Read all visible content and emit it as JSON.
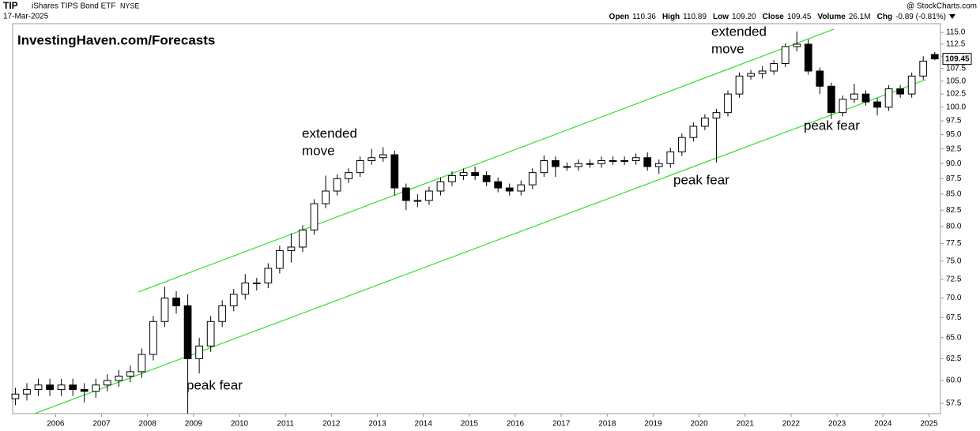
{
  "header": {
    "symbol": "TIP",
    "name": "iShares TIPS Bond ETF",
    "exchange": "NYSE",
    "date": "17-Mar-2025",
    "credit": "@ StockCharts.com",
    "quote": [
      {
        "label": "Open",
        "value": "110.36"
      },
      {
        "label": "High",
        "value": "110.89"
      },
      {
        "label": "Low",
        "value": "109.20"
      },
      {
        "label": "Close",
        "value": "109.45"
      },
      {
        "label": "Volume",
        "value": "26.1M"
      },
      {
        "label": "Chg",
        "value": "-0.89 (-0.81%)"
      }
    ]
  },
  "chart_data": {
    "type": "candlestick",
    "log_scale": true,
    "up_color": "#ffffff",
    "down_color": "#000000",
    "color": "#000000",
    "x": [
      2005,
      2005.25,
      2005.5,
      2005.75,
      2006,
      2006.25,
      2006.5,
      2006.75,
      2007,
      2007.25,
      2007.5,
      2007.75,
      2008,
      2008.25,
      2008.5,
      2008.75,
      2009,
      2009.25,
      2009.5,
      2009.75,
      2010,
      2010.25,
      2010.5,
      2010.75,
      2011,
      2011.25,
      2011.5,
      2011.75,
      2012,
      2012.25,
      2012.5,
      2012.75,
      2013,
      2013.25,
      2013.5,
      2013.75,
      2014,
      2014.25,
      2014.5,
      2014.75,
      2015,
      2015.25,
      2015.5,
      2015.75,
      2016,
      2016.25,
      2016.5,
      2016.75,
      2017,
      2017.25,
      2017.5,
      2017.75,
      2018,
      2018.25,
      2018.5,
      2018.75,
      2019,
      2019.25,
      2019.5,
      2019.75,
      2020,
      2020.25,
      2020.5,
      2020.75,
      2021,
      2021.25,
      2021.5,
      2021.75,
      2022,
      2022.25,
      2022.5,
      2022.75,
      2023,
      2023.25,
      2023.5,
      2023.75,
      2024,
      2024.25,
      2024.5,
      2024.75,
      2025
    ],
    "open": [
      58.0,
      58.5,
      59.0,
      59.5,
      59.0,
      59.5,
      59.0,
      58.8,
      59.5,
      60.0,
      60.5,
      61.0,
      63.0,
      67.0,
      70.0,
      69.0,
      62.5,
      64.0,
      67.0,
      69.0,
      70.5,
      72.0,
      72.0,
      74.0,
      76.5,
      77.0,
      79.5,
      83.5,
      85.5,
      87.5,
      88.5,
      90.5,
      91.0,
      91.5,
      86.0,
      84.0,
      84.0,
      85.5,
      87.0,
      88.0,
      88.5,
      88.0,
      87.0,
      86.0,
      85.5,
      86.5,
      88.5,
      90.5,
      89.5,
      89.5,
      90.0,
      90.0,
      90.5,
      90.5,
      90.5,
      91.0,
      89.5,
      90.0,
      92.0,
      94.5,
      96.5,
      98.0,
      99.0,
      102.5,
      106.0,
      106.5,
      107.0,
      108.5,
      112.0,
      112.5,
      107.0,
      104.0,
      99.0,
      101.5,
      102.5,
      101.0,
      100.0,
      103.5,
      102.5,
      106.0,
      110.36
    ],
    "high": [
      59.2,
      59.7,
      60.2,
      60.2,
      60.2,
      60.2,
      59.7,
      60.2,
      60.7,
      61.2,
      61.7,
      63.7,
      67.7,
      71.5,
      70.9,
      70.5,
      65.0,
      67.7,
      69.7,
      71.2,
      73.2,
      72.7,
      74.7,
      77.2,
      79.0,
      80.2,
      84.2,
      88.0,
      88.2,
      89.2,
      91.2,
      92.5,
      92.8,
      92.2,
      86.7,
      85.0,
      86.2,
      87.7,
      88.7,
      89.2,
      89.5,
      88.7,
      87.7,
      86.7,
      87.2,
      89.2,
      91.4,
      91.2,
      90.2,
      90.7,
      90.7,
      91.2,
      91.2,
      91.2,
      91.7,
      91.9,
      90.7,
      92.7,
      95.2,
      97.2,
      98.7,
      99.7,
      103.2,
      106.7,
      107.2,
      108.0,
      109.2,
      112.7,
      115.2,
      113.5,
      107.7,
      104.7,
      102.2,
      104.5,
      103.2,
      101.7,
      104.2,
      104.2,
      106.7,
      110.0,
      110.89
    ],
    "low": [
      57.3,
      57.8,
      58.3,
      58.3,
      58.3,
      58.3,
      57.6,
      58.1,
      58.8,
      59.3,
      59.8,
      60.3,
      62.3,
      66.3,
      68.0,
      56.4,
      60.8,
      63.3,
      66.3,
      68.3,
      69.8,
      71.0,
      71.3,
      73.3,
      74.8,
      76.3,
      78.8,
      82.8,
      84.8,
      86.8,
      87.8,
      89.8,
      90.3,
      84.8,
      82.5,
      83.0,
      83.3,
      84.8,
      86.3,
      87.3,
      87.3,
      86.3,
      85.3,
      84.8,
      84.8,
      85.8,
      87.8,
      87.8,
      88.8,
      88.8,
      89.3,
      89.3,
      89.8,
      89.8,
      89.8,
      88.8,
      88.3,
      89.3,
      91.3,
      93.8,
      95.8,
      90.2,
      98.3,
      101.8,
      105.3,
      105.5,
      106.3,
      107.8,
      111.0,
      106.3,
      102.5,
      97.8,
      98.3,
      100.8,
      100.3,
      98.5,
      99.3,
      101.8,
      101.8,
      105.3,
      109.2
    ],
    "close": [
      58.5,
      59.0,
      59.5,
      59.0,
      59.5,
      59.0,
      58.8,
      59.5,
      60.0,
      60.5,
      61.0,
      63.0,
      67.0,
      70.0,
      69.0,
      62.5,
      64.0,
      67.0,
      69.0,
      70.5,
      72.0,
      72.0,
      74.0,
      76.5,
      77.0,
      79.5,
      83.5,
      85.5,
      87.5,
      88.5,
      90.5,
      91.0,
      91.5,
      86.0,
      84.0,
      84.0,
      85.5,
      87.0,
      88.0,
      88.5,
      88.0,
      87.0,
      86.0,
      85.5,
      86.5,
      88.5,
      90.5,
      89.5,
      89.5,
      90.0,
      90.0,
      90.5,
      90.5,
      90.5,
      91.0,
      89.5,
      90.0,
      92.0,
      94.5,
      96.5,
      98.0,
      99.0,
      102.5,
      106.0,
      106.5,
      107.0,
      108.5,
      112.0,
      112.5,
      107.0,
      104.0,
      99.0,
      101.5,
      102.5,
      101.0,
      100.0,
      103.5,
      102.5,
      106.0,
      109.0,
      109.45
    ],
    "xlim": [
      2005.1,
      2025.25
    ],
    "xticks": [
      2006,
      2007,
      2008,
      2009,
      2010,
      2011,
      2012,
      2013,
      2014,
      2015,
      2016,
      2017,
      2018,
      2019,
      2020,
      2021,
      2022,
      2023,
      2024,
      2025
    ],
    "ylim": [
      56.4,
      116.9
    ],
    "yticks": [
      57.5,
      {
        "value": 60,
        "label": "60.0"
      },
      62.5,
      {
        "value": 65,
        "label": "65.0"
      },
      67.5,
      {
        "value": 70,
        "label": "70.0"
      },
      72.5,
      {
        "value": 75,
        "label": "75.0"
      },
      77.5,
      {
        "value": 80,
        "label": "80.0"
      },
      82.5,
      {
        "value": 85,
        "label": "85.0"
      },
      87.5,
      {
        "value": 90,
        "label": "90.0"
      },
      92.5,
      {
        "value": 95,
        "label": "95.0"
      },
      97.5,
      {
        "value": 100,
        "label": "100.0"
      },
      102.5,
      {
        "value": 105,
        "label": "105.0"
      },
      107.5,
      {
        "value": 110,
        "label": "110.0"
      },
      112.5,
      {
        "value": 115,
        "label": "115.0"
      }
    ],
    "trendlines": [
      {
        "x": [
          2007.8,
          2022.93
        ],
        "y": [
          70.8,
          115.7
        ],
        "color": "#33dd33"
      },
      {
        "x": [
          2005.1,
          2024.93
        ],
        "y": [
          55.6,
          105.3
        ],
        "color": "#33dd33"
      }
    ],
    "annotations": [
      [
        "InvestingHaven.com/Forecasts"
      ],
      [
        "extended",
        "move"
      ],
      [
        "extended",
        "move"
      ],
      [
        "peak fear"
      ],
      [
        "peak fear"
      ],
      [
        "peak fear"
      ]
    ]
  }
}
